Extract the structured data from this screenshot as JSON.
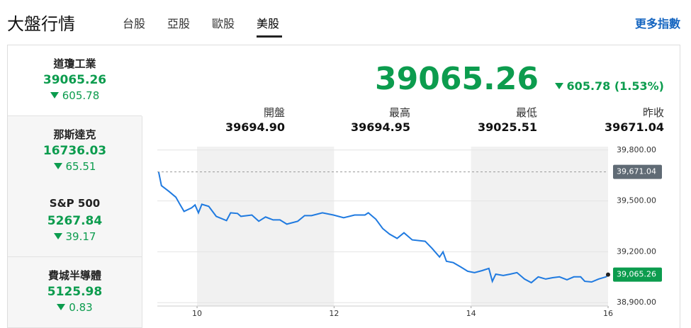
{
  "header": {
    "title": "大盤行情",
    "tabs": [
      "台股",
      "亞股",
      "歐股",
      "美股"
    ],
    "more_link": "更多指數"
  },
  "sidebar": [
    {
      "name": "道瓊工業",
      "value": "39065.26",
      "change": "605.78"
    },
    {
      "name": "那斯達克",
      "value": "16736.03",
      "change": "65.51"
    },
    {
      "name": "S&P 500",
      "value": "5267.84",
      "change": "39.17"
    },
    {
      "name": "費城半導體",
      "value": "5125.98",
      "change": "0.83"
    }
  ],
  "quote": {
    "last": "39065.26",
    "change": "605.78 (1.53%)",
    "stats": [
      {
        "label": "開盤",
        "value": "39694.90"
      },
      {
        "label": "最高",
        "value": "39694.95"
      },
      {
        "label": "最低",
        "value": "39025.51"
      },
      {
        "label": "昨收",
        "value": "39671.04"
      }
    ]
  },
  "chart_data": {
    "type": "line",
    "color": "#1f7ae0",
    "x": [
      9.44,
      9.48,
      9.59,
      9.69,
      9.76,
      9.81,
      9.92,
      9.97,
      10.02,
      10.07,
      10.17,
      10.28,
      10.43,
      10.49,
      10.59,
      10.64,
      10.8,
      10.9,
      11.0,
      11.11,
      11.21,
      11.31,
      11.47,
      11.57,
      11.67,
      11.83,
      11.99,
      12.14,
      12.3,
      12.45,
      12.5,
      12.61,
      12.71,
      12.81,
      12.92,
      13.02,
      13.14,
      13.33,
      13.43,
      13.54,
      13.59,
      13.64,
      13.74,
      13.85,
      13.95,
      14.05,
      14.16,
      14.26,
      14.31,
      14.36,
      14.47,
      14.57,
      14.67,
      14.78,
      14.88,
      14.98,
      15.09,
      15.19,
      15.29,
      15.4,
      15.5,
      15.6,
      15.66,
      15.76,
      15.86,
      15.97,
      16.0
    ],
    "values": [
      39670,
      39590,
      39556,
      39522,
      39472,
      39438,
      39459,
      39476,
      39430,
      39480,
      39468,
      39409,
      39384,
      39430,
      39426,
      39409,
      39417,
      39380,
      39405,
      39388,
      39388,
      39363,
      39380,
      39413,
      39413,
      39430,
      39417,
      39401,
      39417,
      39417,
      39430,
      39392,
      39337,
      39304,
      39279,
      39312,
      39270,
      39262,
      39220,
      39169,
      39199,
      39144,
      39136,
      39110,
      39085,
      39077,
      39089,
      39102,
      39026,
      39068,
      39060,
      39068,
      39077,
      39039,
      39018,
      39052,
      39039,
      39047,
      39052,
      39035,
      39052,
      39052,
      39026,
      39022,
      39039,
      39052,
      39065.26
    ],
    "xlim": [
      9.42,
      16
    ],
    "ylim": [
      38880,
      39820
    ],
    "xticks": [
      10,
      12,
      14,
      16
    ],
    "yticks": [
      {
        "value": 38900,
        "label": "38,900.00"
      },
      {
        "value": 39200,
        "label": "39,200.00"
      },
      {
        "value": 39500,
        "label": "39,500.00"
      },
      {
        "value": 39800,
        "label": "39,800.00"
      }
    ],
    "grid": true,
    "shaded_bands": [
      [
        10,
        12
      ],
      [
        14,
        16
      ]
    ],
    "reference_line": {
      "value": 39671.04,
      "label": "39,671.04"
    },
    "last_label": {
      "value": 39065.26,
      "label": "39,065.26"
    }
  }
}
